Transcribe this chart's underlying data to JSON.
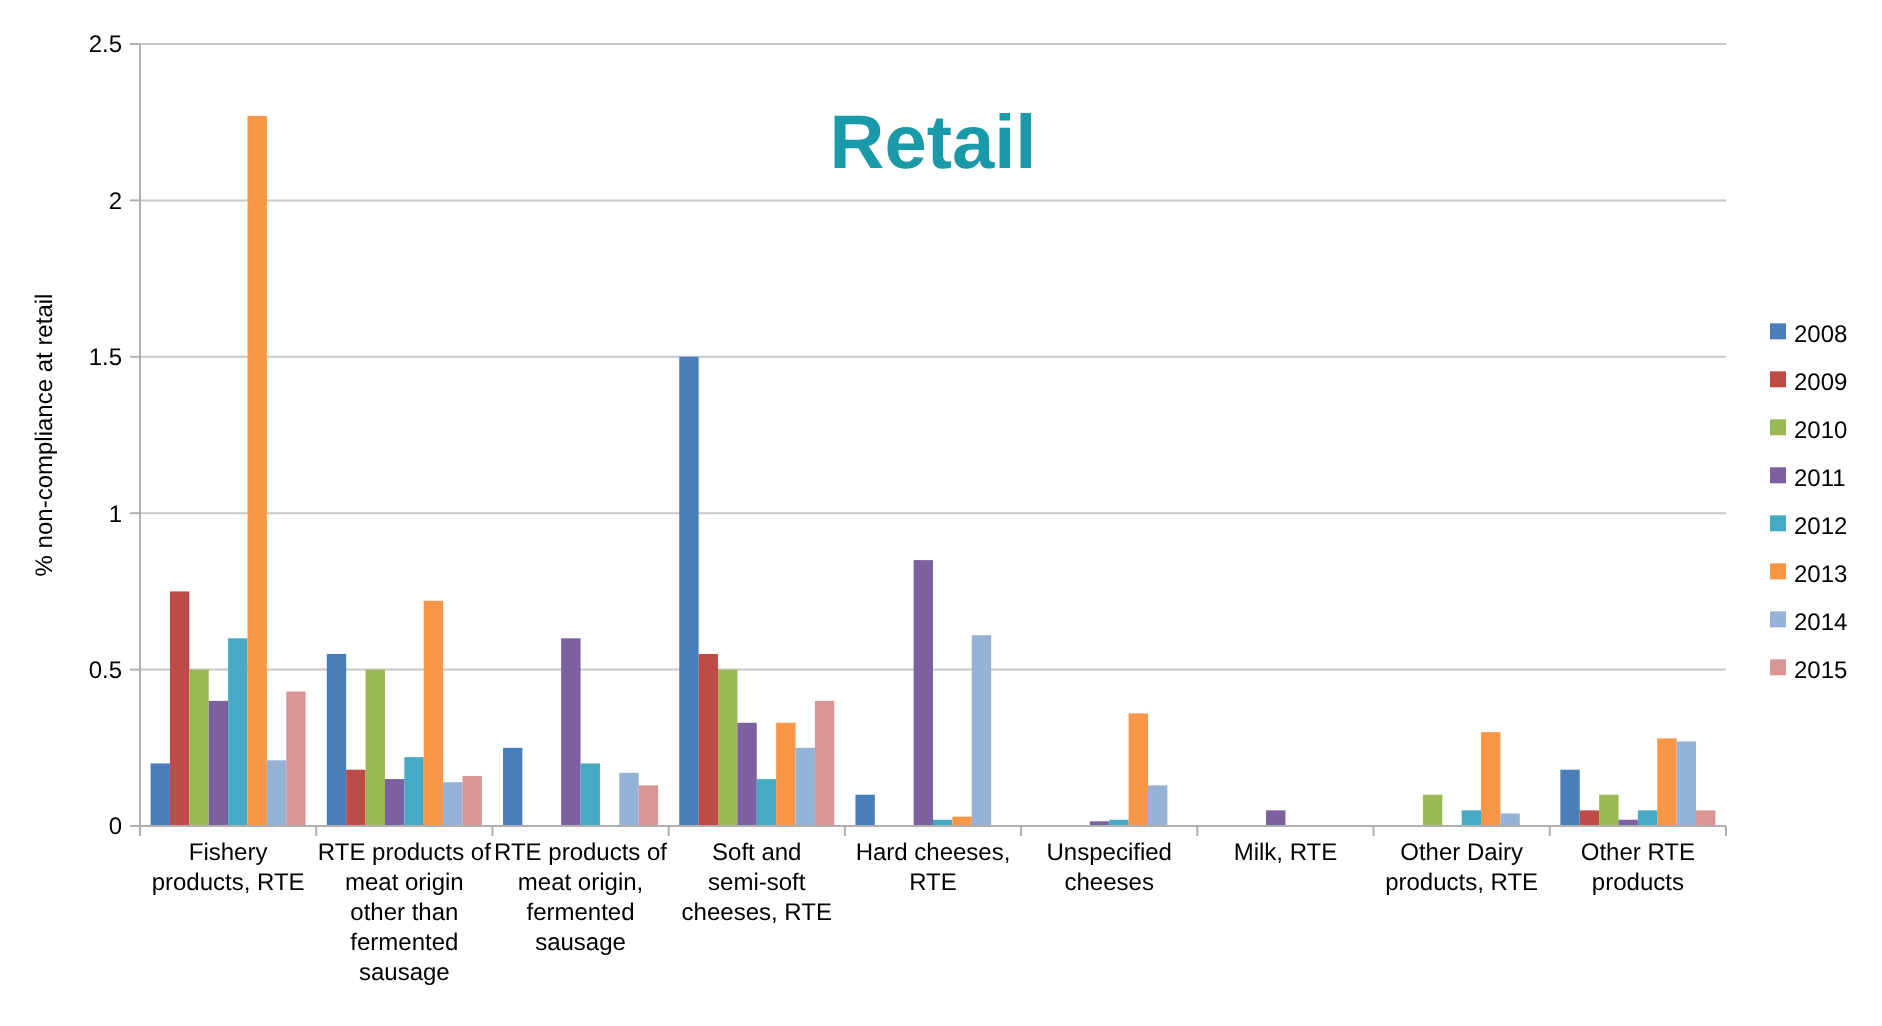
{
  "chart_data": {
    "type": "bar",
    "title": "Retail",
    "ylabel": "% non-compliance at retail",
    "categories": [
      "Fishery products, RTE",
      "RTE products of meat origin other than fermented sausage",
      "RTE products of meat origin, fermented sausage",
      "Soft and semi-soft cheeses, RTE",
      "Hard cheeses, RTE",
      "Unspecified cheeses",
      "Milk, RTE",
      "Other Dairy products, RTE",
      "Other RTE products"
    ],
    "series": [
      {
        "name": "2008",
        "color": "#4a7ebb",
        "values": [
          0.2,
          0.55,
          0.25,
          1.5,
          0.1,
          null,
          null,
          null,
          0.18
        ]
      },
      {
        "name": "2009",
        "color": "#be4b48",
        "values": [
          0.75,
          0.18,
          null,
          0.55,
          null,
          null,
          null,
          null,
          0.05
        ]
      },
      {
        "name": "2010",
        "color": "#98b954",
        "values": [
          0.5,
          0.5,
          null,
          0.5,
          null,
          null,
          null,
          0.1,
          0.1
        ]
      },
      {
        "name": "2011",
        "color": "#7d60a0",
        "values": [
          0.4,
          0.15,
          0.6,
          0.33,
          0.85,
          0.015,
          0.05,
          null,
          0.02
        ]
      },
      {
        "name": "2012",
        "color": "#46aac5",
        "values": [
          0.6,
          0.22,
          0.2,
          0.15,
          0.02,
          0.02,
          null,
          0.05,
          0.05
        ]
      },
      {
        "name": "2013",
        "color": "#f79646",
        "values": [
          2.27,
          0.72,
          null,
          0.33,
          0.03,
          0.36,
          null,
          0.3,
          0.28
        ]
      },
      {
        "name": "2014",
        "color": "#95b3d7",
        "values": [
          0.21,
          0.14,
          0.17,
          0.25,
          0.61,
          0.13,
          null,
          0.04,
          0.27
        ]
      },
      {
        "name": "2015",
        "color": "#d99694",
        "values": [
          0.43,
          0.16,
          0.13,
          0.4,
          null,
          null,
          null,
          null,
          0.05
        ]
      }
    ],
    "ylim": [
      0,
      2.5
    ],
    "yticks": [
      0,
      0.5,
      1,
      1.5,
      2,
      2.5
    ],
    "grid": "y",
    "legend": "right"
  }
}
